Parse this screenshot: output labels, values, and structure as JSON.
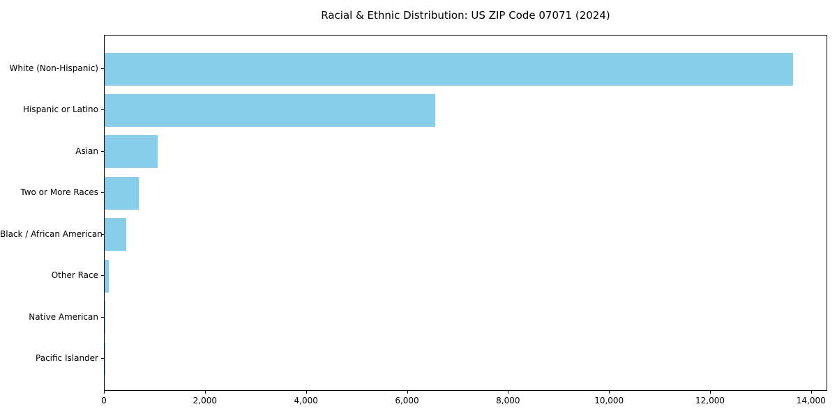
{
  "title": "Racial & Ethnic Distribution: US ZIP Code 07071 (2024)",
  "chart_data": {
    "type": "bar",
    "orientation": "horizontal",
    "title": "Racial & Ethnic Distribution: US ZIP Code 07071 (2024)",
    "xlabel": "",
    "ylabel": "",
    "categories": [
      "White (Non-Hispanic)",
      "Hispanic or Latino",
      "Asian",
      "Two or More Races",
      "Black / African American",
      "Other Race",
      "Native American",
      "Pacific Islander"
    ],
    "values": [
      13630,
      6540,
      1050,
      680,
      430,
      85,
      10,
      5
    ],
    "xlim": [
      0,
      14320
    ],
    "xticks": [
      0,
      2000,
      4000,
      6000,
      8000,
      10000,
      12000,
      14000
    ],
    "xtick_labels": [
      "0",
      "2,000",
      "4,000",
      "6,000",
      "8,000",
      "10,000",
      "12,000",
      "14,000"
    ],
    "bar_color": "#87CEEB",
    "axis_color": "#000000",
    "background_color": "#ffffff",
    "grid": false,
    "legend": null
  }
}
